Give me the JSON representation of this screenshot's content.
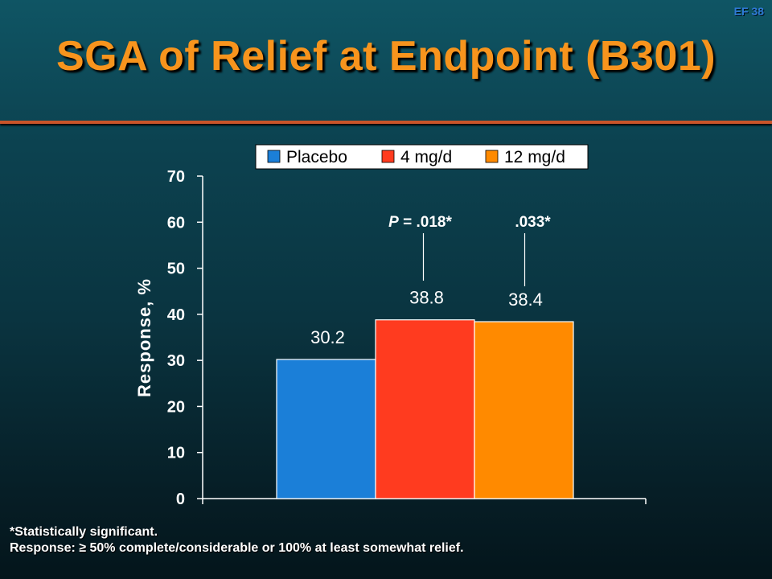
{
  "slide": {
    "id": "EF 38",
    "title": "SGA of Relief at Endpoint (B301)",
    "footnote_line1": "*Statistically significant.",
    "footnote_line2": "Response: ≥ 50% complete/considerable or 100% at least somewhat relief."
  },
  "colors": {
    "title": "#f7941d",
    "placebo": "#1b7fd8",
    "dose4": "#ff3b1f",
    "dose12": "#ff8a00"
  },
  "chart_data": {
    "type": "bar",
    "title": "",
    "xlabel": "",
    "ylabel": "Response, %",
    "ylim": [
      0,
      70
    ],
    "yticks": [
      0,
      10,
      20,
      30,
      40,
      50,
      60,
      70
    ],
    "legend_position": "top",
    "grid": false,
    "series": [
      {
        "name": "Placebo",
        "value": 30.2,
        "label": "30.2",
        "color": "#1b7fd8"
      },
      {
        "name": "4 mg/d",
        "value": 38.8,
        "label": "38.8",
        "color": "#ff3b1f"
      },
      {
        "name": "12 mg/d",
        "value": 38.4,
        "label": "38.4",
        "color": "#ff8a00"
      }
    ],
    "annotations": [
      {
        "series": "4 mg/d",
        "prefix": "P = ",
        "text": ".018*"
      },
      {
        "series": "12 mg/d",
        "prefix": "",
        "text": ".033*"
      }
    ]
  }
}
